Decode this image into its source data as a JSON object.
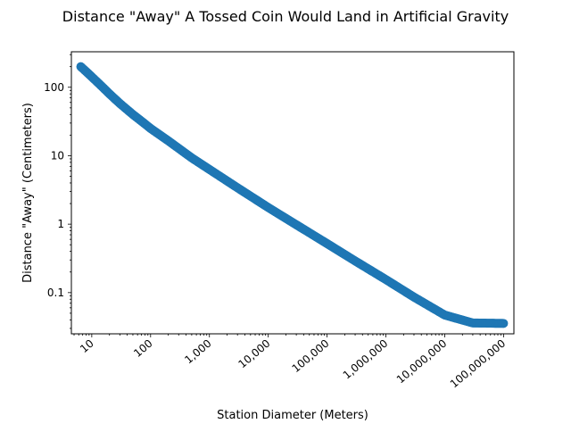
{
  "chart_data": {
    "type": "scatter",
    "title": "Distance \"Away\" A Tossed Coin Would Land in Artificial Gravity",
    "xlabel": "Station Diameter (Meters)",
    "ylabel": "Distance \"Away\" (Centimeters)",
    "xscale": "log",
    "yscale": "log",
    "xlim": [
      4.5,
      150000000
    ],
    "ylim": [
      0.025,
      330
    ],
    "grid": false,
    "x_ticks": [
      {
        "value": 10,
        "label": "10"
      },
      {
        "value": 100,
        "label": "100"
      },
      {
        "value": 1000,
        "label": "1,000"
      },
      {
        "value": 10000,
        "label": "10,000"
      },
      {
        "value": 100000,
        "label": "100,000"
      },
      {
        "value": 1000000,
        "label": "1,000,000"
      },
      {
        "value": 10000000,
        "label": "10,000,000"
      },
      {
        "value": 100000000,
        "label": "100,000,000"
      }
    ],
    "y_ticks": [
      {
        "value": 100,
        "label": "100"
      },
      {
        "value": 10,
        "label": "10"
      },
      {
        "value": 1,
        "label": "1"
      },
      {
        "value": 0.1,
        "label": "0.1"
      }
    ],
    "series": [
      {
        "color": "#1f77b4",
        "x": [
          6.5,
          8,
          10,
          15,
          20,
          30,
          50,
          75,
          100,
          200,
          500,
          1000,
          3000,
          10000,
          30000,
          100000,
          300000,
          1000000,
          3000000,
          10000000,
          30000000,
          100000000
        ],
        "y": [
          200,
          170,
          142,
          102,
          80,
          58,
          40,
          30.5,
          25,
          16.5,
          9.3,
          6.3,
          3.4,
          1.75,
          0.98,
          0.52,
          0.29,
          0.155,
          0.086,
          0.047,
          0.036,
          0.0355
        ]
      }
    ]
  }
}
